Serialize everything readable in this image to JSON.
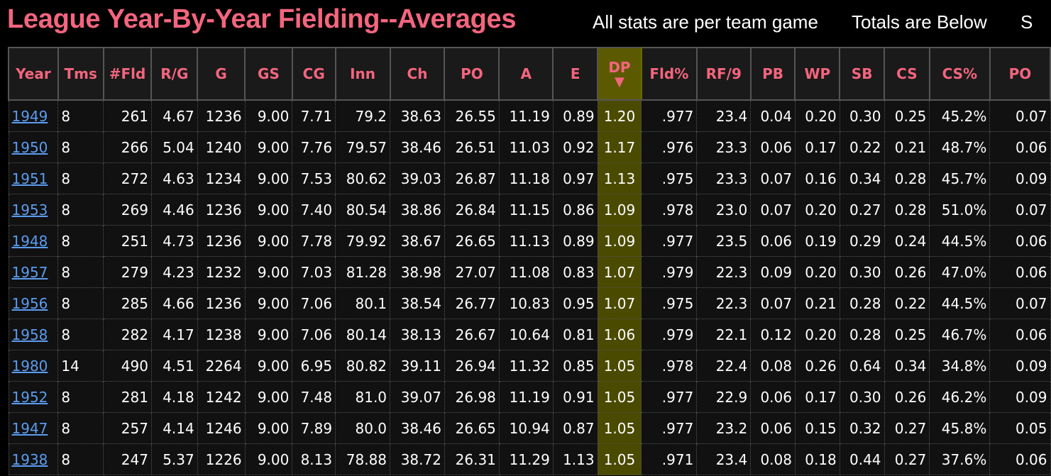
{
  "header": {
    "title": "League Year-By-Year Fielding--Averages",
    "note_per_game": "All stats are per team game",
    "note_totals": "Totals are Below",
    "note_cut": "S"
  },
  "table": {
    "sorted_column": "DP",
    "sort_arrow": "▼",
    "columns": [
      "Year",
      "Tms",
      "#Fld",
      "R/G",
      "G",
      "GS",
      "CG",
      "Inn",
      "Ch",
      "PO",
      "A",
      "E",
      "DP",
      "Fld%",
      "RF/9",
      "PB",
      "WP",
      "SB",
      "CS",
      "CS%",
      "PO"
    ],
    "rows": [
      [
        "1949",
        "8",
        "261",
        "4.67",
        "1236",
        "9.00",
        "7.71",
        "79.2",
        "38.63",
        "26.55",
        "11.19",
        "0.89",
        "1.20",
        ".977",
        "23.4",
        "0.04",
        "0.20",
        "0.30",
        "0.25",
        "45.2%",
        "0.07"
      ],
      [
        "1950",
        "8",
        "266",
        "5.04",
        "1240",
        "9.00",
        "7.76",
        "79.57",
        "38.46",
        "26.51",
        "11.03",
        "0.92",
        "1.17",
        ".976",
        "23.3",
        "0.06",
        "0.17",
        "0.22",
        "0.21",
        "48.7%",
        "0.06"
      ],
      [
        "1951",
        "8",
        "272",
        "4.63",
        "1234",
        "9.00",
        "7.53",
        "80.62",
        "39.03",
        "26.87",
        "11.18",
        "0.97",
        "1.13",
        ".975",
        "23.3",
        "0.07",
        "0.16",
        "0.34",
        "0.28",
        "45.7%",
        "0.09"
      ],
      [
        "1953",
        "8",
        "269",
        "4.46",
        "1236",
        "9.00",
        "7.40",
        "80.54",
        "38.86",
        "26.84",
        "11.15",
        "0.86",
        "1.09",
        ".978",
        "23.0",
        "0.07",
        "0.20",
        "0.27",
        "0.28",
        "51.0%",
        "0.07"
      ],
      [
        "1948",
        "8",
        "251",
        "4.73",
        "1236",
        "9.00",
        "7.78",
        "79.92",
        "38.67",
        "26.65",
        "11.13",
        "0.89",
        "1.09",
        ".977",
        "23.5",
        "0.06",
        "0.19",
        "0.29",
        "0.24",
        "44.5%",
        "0.06"
      ],
      [
        "1957",
        "8",
        "279",
        "4.23",
        "1232",
        "9.00",
        "7.03",
        "81.28",
        "38.98",
        "27.07",
        "11.08",
        "0.83",
        "1.07",
        ".979",
        "22.3",
        "0.09",
        "0.20",
        "0.30",
        "0.26",
        "47.0%",
        "0.06"
      ],
      [
        "1956",
        "8",
        "285",
        "4.66",
        "1236",
        "9.00",
        "7.06",
        "80.1",
        "38.54",
        "26.77",
        "10.83",
        "0.95",
        "1.07",
        ".975",
        "22.3",
        "0.07",
        "0.21",
        "0.28",
        "0.22",
        "44.5%",
        "0.07"
      ],
      [
        "1958",
        "8",
        "282",
        "4.17",
        "1238",
        "9.00",
        "7.06",
        "80.14",
        "38.13",
        "26.67",
        "10.64",
        "0.81",
        "1.06",
        ".979",
        "22.1",
        "0.12",
        "0.20",
        "0.28",
        "0.25",
        "46.7%",
        "0.06"
      ],
      [
        "1980",
        "14",
        "490",
        "4.51",
        "2264",
        "9.00",
        "6.95",
        "80.82",
        "39.11",
        "26.94",
        "11.32",
        "0.85",
        "1.05",
        ".978",
        "22.4",
        "0.08",
        "0.26",
        "0.64",
        "0.34",
        "34.8%",
        "0.09"
      ],
      [
        "1952",
        "8",
        "281",
        "4.18",
        "1242",
        "9.00",
        "7.48",
        "81.0",
        "39.07",
        "26.98",
        "11.19",
        "0.91",
        "1.05",
        ".977",
        "22.9",
        "0.06",
        "0.17",
        "0.30",
        "0.26",
        "46.2%",
        "0.09"
      ],
      [
        "1947",
        "8",
        "257",
        "4.14",
        "1246",
        "9.00",
        "7.89",
        "80.0",
        "38.46",
        "26.65",
        "10.94",
        "0.87",
        "1.05",
        ".977",
        "23.2",
        "0.06",
        "0.15",
        "0.32",
        "0.27",
        "45.8%",
        "0.05"
      ],
      [
        "1938",
        "8",
        "247",
        "5.37",
        "1226",
        "9.00",
        "8.13",
        "78.88",
        "38.72",
        "26.31",
        "11.29",
        "1.13",
        "1.05",
        ".971",
        "23.4",
        "0.08",
        "0.18",
        "0.44",
        "0.27",
        "37.6%",
        "0.06"
      ]
    ]
  },
  "colors": {
    "title": "#f4657e",
    "link": "#5b9cf0",
    "sorted_bg": "#4a4a00"
  }
}
